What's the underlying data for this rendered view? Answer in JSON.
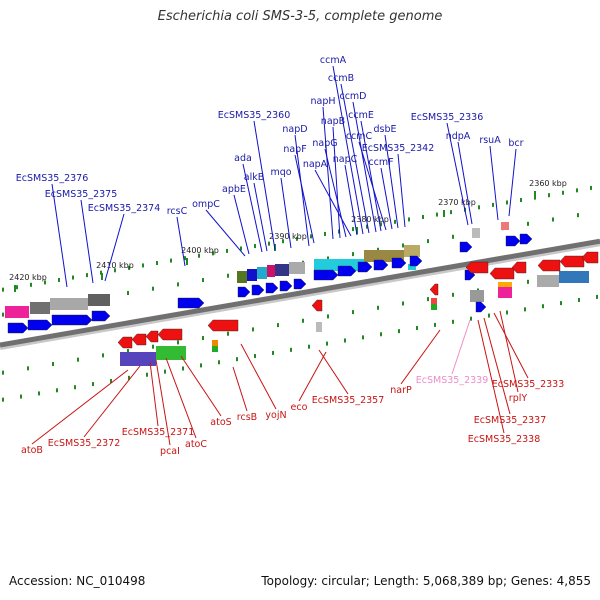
{
  "title": "Escherichia coli SMS-3-5, complete genome",
  "footer": {
    "accession": "Accession: NC_010498",
    "summary": "Topology: circular; Length: 5,068,389 bp; Genes: 4,855"
  },
  "colors": {
    "forward_label": "#1a1aa8",
    "reverse_label": "#c81414",
    "pink_label": "#f08ccb",
    "forward_arrow": "#0000ee",
    "reverse_arrow": "#ee1111",
    "tick": "#228822"
  },
  "scale": {
    "ticks": [
      "2360 kbp",
      "2370 kbp",
      "2380 kbp",
      "2390 kbp",
      "2400 kbp",
      "2410 kbp",
      "2420 kbp"
    ]
  },
  "forward_labels": [
    "EcSMS35_2376",
    "EcSMS35_2375",
    "EcSMS35_2374",
    "rcsC",
    "ompC",
    "apbE",
    "ada",
    "alkB",
    "EcSMS35_2360",
    "mqo",
    "napD",
    "napF",
    "napH",
    "napB",
    "napG",
    "napA",
    "napC",
    "ccmA",
    "ccmB",
    "ccmD",
    "ccmE",
    "ccmC",
    "ccmF",
    "dsbE",
    "EcSMS35_2342",
    "EcSMS35_2336",
    "ndpA",
    "rsuA",
    "bcr"
  ],
  "reverse_labels": [
    "atoB",
    "EcSMS35_2372",
    "EcSMS35_2371",
    "pcaI",
    "atoC",
    "atoS",
    "rcsB",
    "yojN",
    "eco",
    "EcSMS35_2357",
    "narP",
    "EcSMS35_2339",
    "EcSMS35_2333",
    "rplY",
    "EcSMS35_2337",
    "EcSMS35_2338"
  ]
}
